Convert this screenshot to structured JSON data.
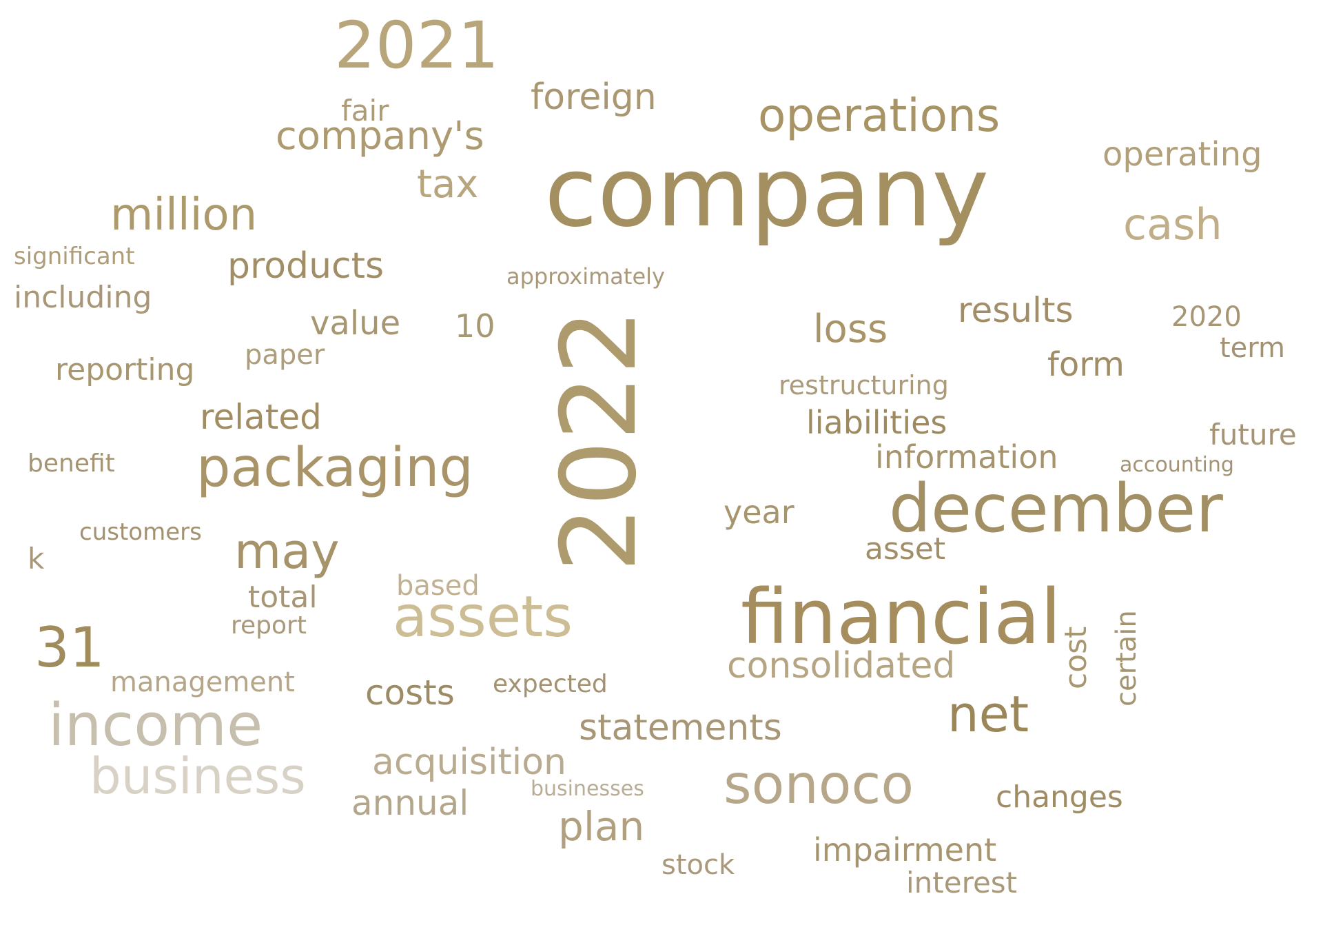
{
  "words": [
    {
      "text": "company",
      "color": "#a38f5f"
    },
    {
      "text": "2022",
      "color": "#ad9a6d"
    },
    {
      "text": "financial",
      "color": "#a58d5e"
    },
    {
      "text": "december",
      "color": "#a28f63"
    },
    {
      "text": "2021",
      "color": "#b8a57a"
    },
    {
      "text": "income",
      "color": "#c6bfae"
    },
    {
      "text": "assets",
      "color": "#cdbd95"
    },
    {
      "text": "packaging",
      "color": "#a89468"
    },
    {
      "text": "operations",
      "color": "#a79363"
    },
    {
      "text": "business",
      "color": "#d8d2c6"
    },
    {
      "text": "sonoco",
      "color": "#b7a78a"
    },
    {
      "text": "net",
      "color": "#9a8657"
    },
    {
      "text": "million",
      "color": "#ad9a6c"
    },
    {
      "text": "cash",
      "color": "#c0ae89"
    },
    {
      "text": "company's",
      "color": "#ad9a70"
    },
    {
      "text": "consolidated",
      "color": "#b5a583"
    },
    {
      "text": "statements",
      "color": "#a79676"
    },
    {
      "text": "may",
      "color": "#a69369"
    },
    {
      "text": "plan",
      "color": "#b0a07f"
    },
    {
      "text": "acquisition",
      "color": "#b9ab8f"
    },
    {
      "text": "liabilities",
      "color": "#9d8a60"
    },
    {
      "text": "foreign",
      "color": "#a99772"
    },
    {
      "text": "related",
      "color": "#a18d61"
    },
    {
      "text": "loss",
      "color": "#a89467"
    },
    {
      "text": "31",
      "color": "#a08b5d"
    },
    {
      "text": "tax",
      "color": "#b7a57e"
    },
    {
      "text": "products",
      "color": "#a18e66"
    },
    {
      "text": "impairment",
      "color": "#a69570"
    },
    {
      "text": "information",
      "color": "#a5946e"
    },
    {
      "text": "year",
      "color": "#a7956d"
    },
    {
      "text": "results",
      "color": "#a18e68"
    },
    {
      "text": "operating",
      "color": "#b2a07b"
    },
    {
      "text": "reporting",
      "color": "#a8966e"
    },
    {
      "text": "asset",
      "color": "#a18e68"
    },
    {
      "text": "form",
      "color": "#a08d66"
    },
    {
      "text": "costs",
      "color": "#9d8b66"
    },
    {
      "text": "annual",
      "color": "#b3a68a"
    },
    {
      "text": "changes",
      "color": "#a08c62"
    },
    {
      "text": "interest",
      "color": "#a9997b"
    },
    {
      "text": "cost",
      "color": "#a79670"
    },
    {
      "text": "certain",
      "color": "#a59470"
    },
    {
      "text": "value",
      "color": "#a69672"
    },
    {
      "text": "stock",
      "color": "#a9997a"
    },
    {
      "text": "including",
      "color": "#a99676"
    },
    {
      "text": "total",
      "color": "#a69676"
    },
    {
      "text": "management",
      "color": "#b5a689"
    },
    {
      "text": "report",
      "color": "#a9987a"
    },
    {
      "text": "expected",
      "color": "#a39271"
    },
    {
      "text": "2020",
      "color": "#a79673"
    },
    {
      "text": "significant",
      "color": "#ad9d7b"
    },
    {
      "text": "based",
      "color": "#c1b190"
    },
    {
      "text": "future",
      "color": "#a49475"
    },
    {
      "text": "paper",
      "color": "#ad9d7a"
    },
    {
      "text": "restructuring",
      "color": "#ab9b7a"
    },
    {
      "text": "10",
      "color": "#a89773"
    },
    {
      "text": "customers",
      "color": "#a29272"
    },
    {
      "text": "benefit",
      "color": "#a49474"
    },
    {
      "text": "fair",
      "color": "#ab9b79"
    },
    {
      "text": "term",
      "color": "#a29273"
    },
    {
      "text": "approximately",
      "color": "#a9997a"
    },
    {
      "text": "k",
      "color": "#a89877"
    },
    {
      "text": "businesses",
      "color": "#b9ad96"
    },
    {
      "text": "accounting",
      "color": "#a39374"
    }
  ]
}
